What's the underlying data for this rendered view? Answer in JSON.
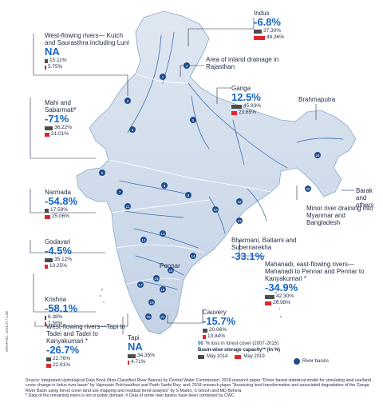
{
  "basins": [
    {
      "id": "indus",
      "name": "Indus",
      "pct": "-6.8%",
      "v2014": "37.30%",
      "v2019": "48.36%",
      "f2014": 0.373,
      "f2019": 0.4836
    },
    {
      "id": "wfr-kutch",
      "name": "West-flowing rivers— Kutch and Saurasthra including Luni",
      "pct": "NA",
      "v2014": "15.11%",
      "v2019": "5.75%",
      "f2014": 0.1511,
      "f2019": 0.0575
    },
    {
      "id": "ganga",
      "name": "Ganga",
      "pct": "12.5%",
      "v2014": "45.93%",
      "v2019": "23.65%",
      "f2014": 0.4593,
      "f2019": 0.2365
    },
    {
      "id": "mahi",
      "name": "Mahi and Sabarmati*",
      "pct": "-71%",
      "v2014": "36.22%",
      "v2019": "21.01%",
      "f2014": 0.3622,
      "f2019": 0.2101
    },
    {
      "id": "narmada",
      "name": "Narmada",
      "pct": "-54.8%",
      "v2014": "17.59%",
      "v2019": "25.06%",
      "f2014": 0.1759,
      "f2019": 0.2506
    },
    {
      "id": "godavari",
      "name": "Godavari",
      "pct": "-4.5%",
      "v2014": "35.12%",
      "v2019": "13.25%",
      "f2014": 0.3512,
      "f2019": 0.1325
    },
    {
      "id": "krishna",
      "name": "Krishna",
      "pct": "-58.1%",
      "v2014": "6.38%",
      "v2019": "7.58%",
      "f2014": 0.0638,
      "f2019": 0.0758
    },
    {
      "id": "wfr-tapi",
      "name": "West-flowing rivers—Tapi to Tadei and Tadei to Kanyakumari *",
      "pct": "-26.7%",
      "v2014": "22.76%",
      "v2019": "22.91%",
      "f2014": 0.2276,
      "f2019": 0.2291
    },
    {
      "id": "tapi",
      "name": "Tapi",
      "pct": "NA",
      "v2014": "34.35%",
      "v2019": "4.71%",
      "f2014": 0.3435,
      "f2019": 0.0471
    },
    {
      "id": "cauvery",
      "name": "Cauvery",
      "pct": "-15.7%",
      "v2014": "20.06%",
      "v2019": "13.84%",
      "f2014": 0.2006,
      "f2019": 0.1384
    },
    {
      "id": "mahanadi",
      "name": "Mahanadi, east-flowing rivers—Mahanadi to Pennar and Pennar to Kanyakumari *",
      "pct": "-34.9%",
      "v2014": "42.30%",
      "v2019": "26.98%",
      "f2014": 0.423,
      "f2019": 0.2698
    },
    {
      "id": "bharmani",
      "name": "Bharmani, Baitarni and Subernarekha",
      "pct": "-33.1%"
    }
  ],
  "map_labels": {
    "inland": "Area of inland drainage in Rajasthan",
    "brahmaputra": "Brahmaputra",
    "barak": "Barak and others",
    "minor": "Minor river draining into Myanmar and Bangladesh",
    "pennar": "Pennar"
  },
  "basin_numbers": [
    "1",
    "2",
    "3",
    "4",
    "5",
    "6",
    "7",
    "8",
    "9",
    "10",
    "11",
    "12",
    "13",
    "14",
    "15",
    "16",
    "17",
    "18",
    "19",
    "20",
    "21",
    "22",
    "23",
    "24",
    "25"
  ],
  "legend": {
    "loss_code": "00",
    "loss_text": "% loss in forest cover (2007-2015)",
    "storage_text": "Basin-wise storage capacity** (in %)",
    "may2014": "May 2014",
    "may2019": "May 2019",
    "river_basins": "River basins",
    "river_basins_code": "00"
  },
  "source": "Source: Integrated Hydrological Data Book (Non-Classified River Basins) by Central Water Commission; 2018 research paper \"Driver based statistical model for simulating land use/land cover change in Indus river basin\" by Vajnosein Polchoudhuri and Parth Sarthi Roy; and, 2018 research paper \"Assessing land transformation and associated degradation of the Ganga River Basin using forest cover land use mapping and residual trend analysis\" by S Martin, S Ghosh and MD Behera",
  "notes": "* Data of the remaining rivers is not in public domain; # Data of some river basins have been combined by CWC",
  "credit": "GRAPHIC: SANJIT / CSE",
  "colors": {
    "pct": "#1565c0",
    "bar2014": "#4d4d4d",
    "bar2019": "#e0262d",
    "land": "#c9d6e6",
    "rivers": "#3d6fb0",
    "dot": "#1e4d8c"
  }
}
